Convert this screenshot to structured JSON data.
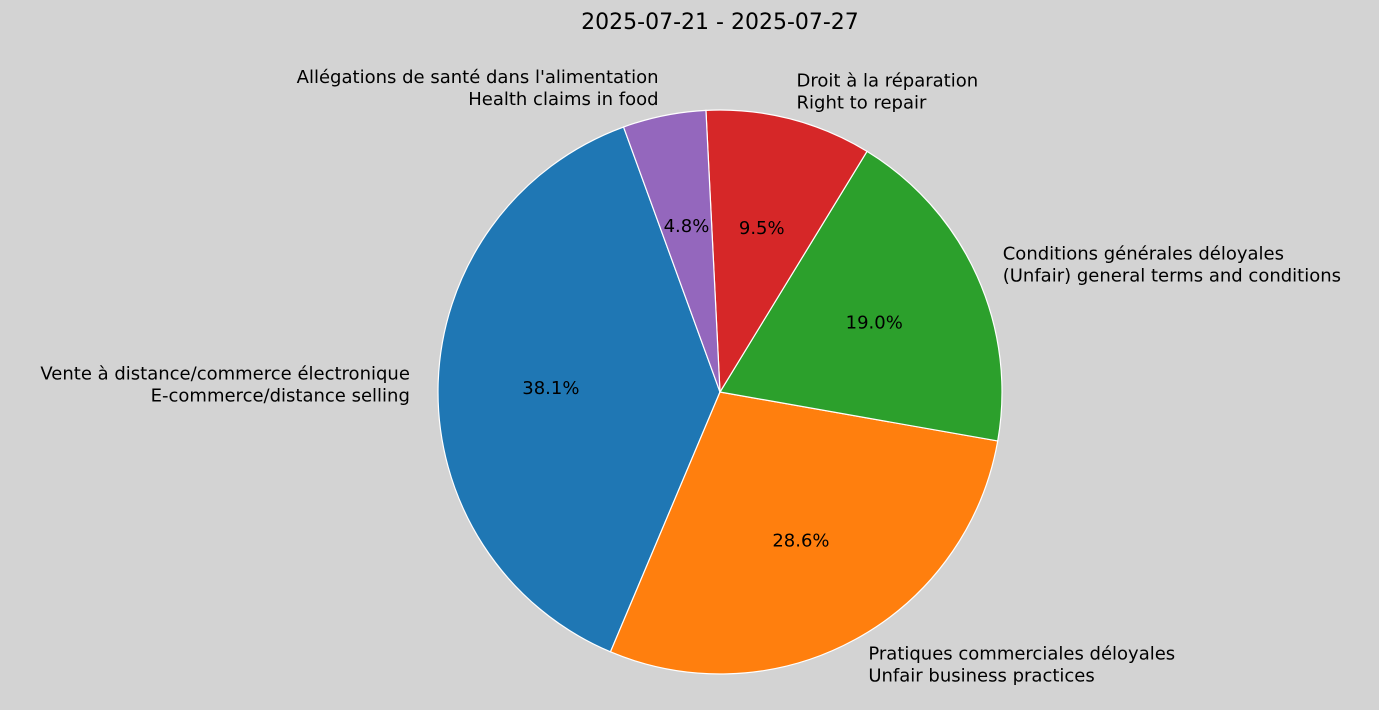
{
  "chart_data": {
    "type": "pie",
    "title": "2025-07-21 - 2025-07-27",
    "start_angle_deg": 110,
    "direction": "counterclockwise",
    "slices": [
      {
        "label_fr": "Vente à distance/commerce électronique",
        "label_en": "E-commerce/distance selling",
        "value": 8,
        "pct": "38.1%",
        "color": "#1f77b4"
      },
      {
        "label_fr": "Pratiques commerciales déloyales",
        "label_en": "Unfair business practices",
        "value": 6,
        "pct": "28.6%",
        "color": "#ff7f0e"
      },
      {
        "label_fr": "Conditions générales déloyales",
        "label_en": "(Unfair) general terms and conditions",
        "value": 4,
        "pct": "19.0%",
        "color": "#2ca02c"
      },
      {
        "label_fr": "Droit à la réparation",
        "label_en": "Right to repair",
        "value": 2,
        "pct": "9.5%",
        "color": "#d62728"
      },
      {
        "label_fr": "Allégations de santé dans l'alimentation",
        "label_en": "Health claims in food",
        "value": 1,
        "pct": "4.8%",
        "color": "#9467bd"
      }
    ],
    "background": "#d3d3d3"
  }
}
